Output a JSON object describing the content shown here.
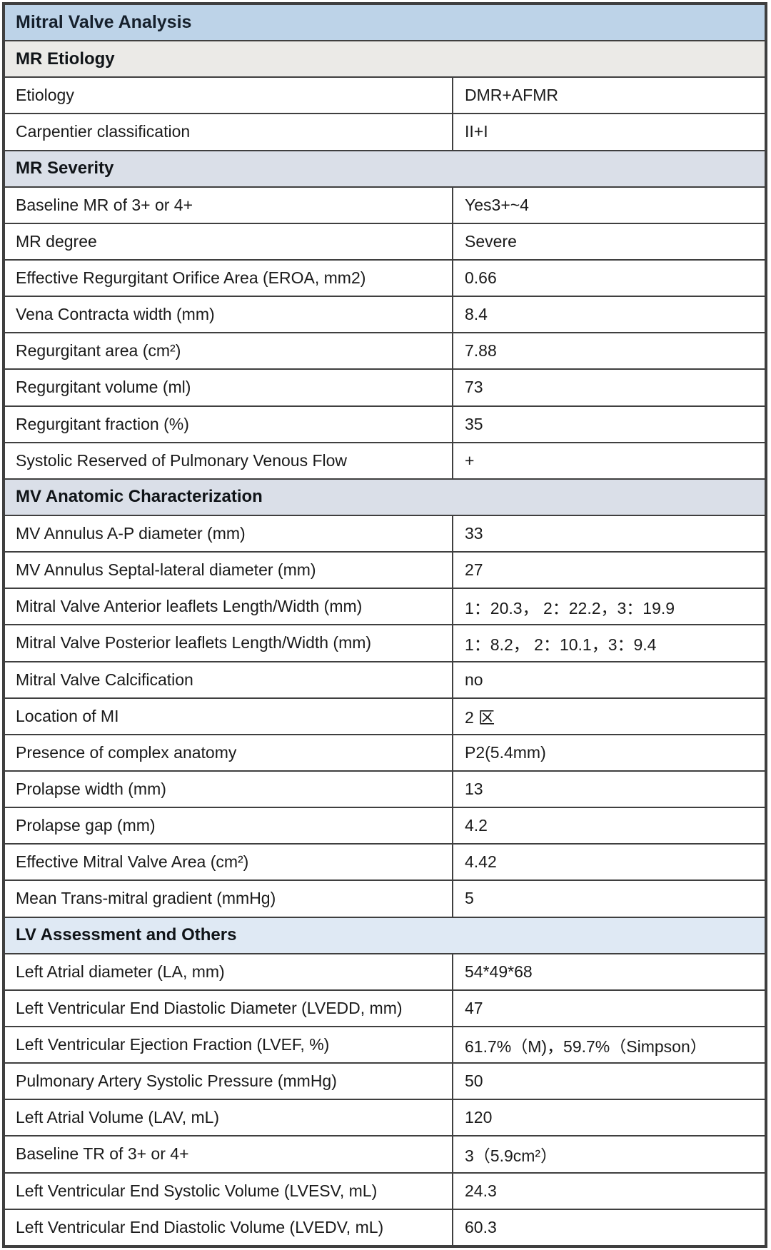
{
  "title": "Mitral Valve Analysis",
  "colors": {
    "border": "#3f3f3f",
    "title_bg": "#bdd3e8",
    "etiology_bg": "#ebeae7",
    "severity_bg": "#dadfe8",
    "anatomic_bg": "#dadfe8",
    "lv_bg": "#dfe9f4",
    "text": "#1a1a1a"
  },
  "sections": [
    {
      "header": "MR Etiology",
      "rows": [
        {
          "label": "Etiology",
          "value": "DMR+AFMR"
        },
        {
          "label": "Carpentier classification",
          "value": "II+I"
        }
      ]
    },
    {
      "header": "MR Severity",
      "rows": [
        {
          "label": "Baseline MR of 3+ or 4+",
          "value": "Yes3+~4"
        },
        {
          "label": "MR degree",
          "value": "Severe"
        },
        {
          "label": "Effective Regurgitant Orifice Area (EROA, mm2)",
          "value": "0.66"
        },
        {
          "label": "Vena Contracta width (mm)",
          "value": "8.4"
        },
        {
          "label": "Regurgitant area (cm²)",
          "value": "7.88"
        },
        {
          "label": "Regurgitant volume (ml)",
          "value": "73"
        },
        {
          "label": "Regurgitant fraction (%)",
          "value": "35"
        },
        {
          "label": "Systolic Reserved of Pulmonary Venous Flow",
          "value": "+"
        }
      ]
    },
    {
      "header": "MV Anatomic Characterization",
      "rows": [
        {
          "label": "MV Annulus A-P diameter (mm)",
          "value": "33"
        },
        {
          "label": "MV Annulus Septal-lateral diameter (mm)",
          "value": "27"
        },
        {
          "label": "Mitral Valve Anterior leaflets Length/Width (mm)",
          "value": "1：20.3， 2：22.2，3：19.9"
        },
        {
          "label": "Mitral Valve Posterior leaflets Length/Width (mm)",
          "value": "1：8.2， 2：10.1，3：9.4"
        },
        {
          "label": "Mitral Valve Calcification",
          "value": "no"
        },
        {
          "label": "Location of MI",
          "value": "2 区"
        },
        {
          "label": "Presence of complex anatomy",
          "value": "P2(5.4mm)"
        },
        {
          "label": "Prolapse width (mm)",
          "value": "13"
        },
        {
          "label": "Prolapse gap (mm)",
          "value": "4.2"
        },
        {
          "label": "Effective Mitral Valve Area (cm²)",
          "value": "4.42"
        },
        {
          "label": "Mean Trans-mitral gradient (mmHg)",
          "value": "5"
        }
      ]
    },
    {
      "header": "LV Assessment and Others",
      "rows": [
        {
          "label": "Left Atrial diameter (LA, mm)",
          "value": "54*49*68"
        },
        {
          "label": "Left Ventricular End Diastolic Diameter (LVEDD, mm)",
          "value": "47"
        },
        {
          "label": "Left Ventricular Ejection Fraction (LVEF, %)",
          "value": "61.7%（M)，59.7%（Simpson）"
        },
        {
          "label": "Pulmonary Artery Systolic Pressure (mmHg)",
          "value": "50"
        },
        {
          "label": "Left Atrial Volume (LAV, mL)",
          "value": "120"
        },
        {
          "label": "Baseline TR of 3+ or 4+",
          "value": "3（5.9cm²）"
        },
        {
          "label": "Left Ventricular End Systolic Volume (LVESV, mL)",
          "value": "24.3"
        },
        {
          "label": "Left Ventricular End Diastolic Volume (LVEDV, mL)",
          "value": "60.3"
        }
      ]
    }
  ]
}
